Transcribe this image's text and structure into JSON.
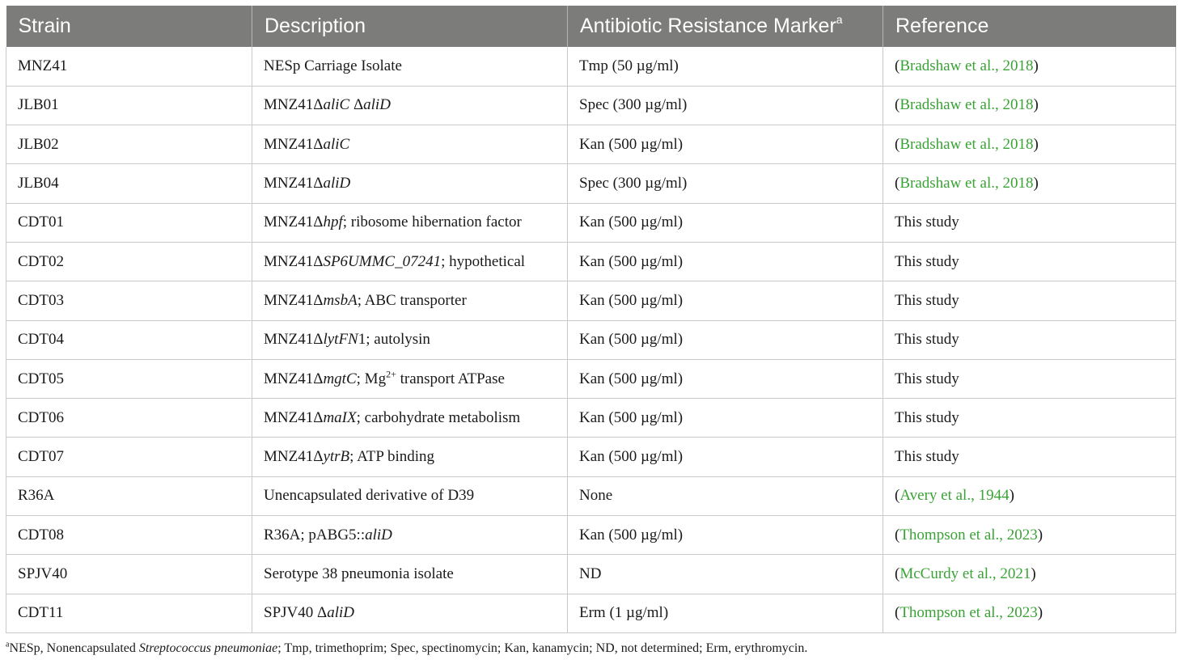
{
  "table": {
    "headers": {
      "strain": "Strain",
      "description": "Description",
      "marker": "Antibiotic Resistance Marker",
      "marker_sup": "a",
      "reference": "Reference"
    },
    "rows": [
      {
        "strain": "MNZ41",
        "desc_pre": "NESp Carriage Isolate",
        "desc_it": "",
        "desc_post": "",
        "desc_sup": "",
        "desc_tail": "",
        "marker": "Tmp (50 µg/ml)",
        "ref_open": "(",
        "ref_link": "Bradshaw et al., 2018",
        "ref_close": ")",
        "ref_plain": ""
      },
      {
        "strain": "JLB01",
        "desc_pre": "MNZ41Δ",
        "desc_it": "aliC",
        "desc_post": " Δ",
        "desc_it2": "aliD",
        "desc_sup": "",
        "desc_tail": "",
        "marker": "Spec (300 µg/ml)",
        "ref_open": "(",
        "ref_link": "Bradshaw et al., 2018",
        "ref_close": ")",
        "ref_plain": ""
      },
      {
        "strain": "JLB02",
        "desc_pre": "MNZ41Δ",
        "desc_it": "aliC",
        "desc_post": "",
        "desc_sup": "",
        "desc_tail": "",
        "marker": "Kan (500 µg/ml)",
        "ref_open": "(",
        "ref_link": "Bradshaw et al., 2018",
        "ref_close": ")",
        "ref_plain": ""
      },
      {
        "strain": "JLB04",
        "desc_pre": "MNZ41Δ",
        "desc_it": "aliD",
        "desc_post": "",
        "desc_sup": "",
        "desc_tail": "",
        "marker": "Spec (300 µg/ml)",
        "ref_open": "(",
        "ref_link": "Bradshaw et al., 2018",
        "ref_close": ")",
        "ref_plain": ""
      },
      {
        "strain": "CDT01",
        "desc_pre": "MNZ41Δ",
        "desc_it": "hpf",
        "desc_post": "; ribosome hibernation factor",
        "desc_sup": "",
        "desc_tail": "",
        "marker": "Kan (500 µg/ml)",
        "ref_open": "",
        "ref_link": "",
        "ref_close": "",
        "ref_plain": "This study"
      },
      {
        "strain": "CDT02",
        "desc_pre": "MNZ41Δ",
        "desc_it": "SP6UMMC_07241",
        "desc_post": "; hypothetical",
        "desc_sup": "",
        "desc_tail": "",
        "marker": "Kan (500 µg/ml)",
        "ref_open": "",
        "ref_link": "",
        "ref_close": "",
        "ref_plain": "This study"
      },
      {
        "strain": "CDT03",
        "desc_pre": "MNZ41Δ",
        "desc_it": "msbA",
        "desc_post": "; ABC transporter",
        "desc_sup": "",
        "desc_tail": "",
        "marker": "Kan (500 µg/ml)",
        "ref_open": "",
        "ref_link": "",
        "ref_close": "",
        "ref_plain": "This study"
      },
      {
        "strain": "CDT04",
        "desc_pre": "MNZ41Δ",
        "desc_it": "lytFN",
        "desc_post": "1; autolysin",
        "desc_sup": "",
        "desc_tail": "",
        "marker": "Kan (500 µg/ml)",
        "ref_open": "",
        "ref_link": "",
        "ref_close": "",
        "ref_plain": "This study"
      },
      {
        "strain": "CDT05",
        "desc_pre": "MNZ41Δ",
        "desc_it": "mgtC",
        "desc_post": "; Mg",
        "desc_sup": "2+",
        "desc_tail": " transport ATPase",
        "marker": "Kan (500 µg/ml)",
        "ref_open": "",
        "ref_link": "",
        "ref_close": "",
        "ref_plain": "This study"
      },
      {
        "strain": "CDT06",
        "desc_pre": "MNZ41Δ",
        "desc_it": "maIX",
        "desc_post": "; carbohydrate metabolism",
        "desc_sup": "",
        "desc_tail": "",
        "marker": "Kan (500 µg/ml)",
        "ref_open": "",
        "ref_link": "",
        "ref_close": "",
        "ref_plain": "This study"
      },
      {
        "strain": "CDT07",
        "desc_pre": "MNZ41Δ",
        "desc_it": "ytrB",
        "desc_post": "; ATP binding",
        "desc_sup": "",
        "desc_tail": "",
        "marker": "Kan (500 µg/ml)",
        "ref_open": "",
        "ref_link": "",
        "ref_close": "",
        "ref_plain": "This study"
      },
      {
        "strain": "R36A",
        "desc_pre": "Unencapsulated derivative of D39",
        "desc_it": "",
        "desc_post": "",
        "desc_sup": "",
        "desc_tail": "",
        "marker": "None",
        "ref_open": "(",
        "ref_link": "Avery et al., 1944",
        "ref_close": ")",
        "ref_plain": ""
      },
      {
        "strain": "CDT08",
        "desc_pre": "R36A; pABG5::",
        "desc_it": "aliD",
        "desc_post": "",
        "desc_sup": "",
        "desc_tail": "",
        "marker": "Kan (500 µg/ml)",
        "ref_open": "(",
        "ref_link": "Thompson et al., 2023",
        "ref_close": ")",
        "ref_plain": ""
      },
      {
        "strain": "SPJV40",
        "desc_pre": "Serotype 38 pneumonia isolate",
        "desc_it": "",
        "desc_post": "",
        "desc_sup": "",
        "desc_tail": "",
        "marker": "ND",
        "ref_open": "(",
        "ref_link": "McCurdy et al., 2021",
        "ref_close": ")",
        "ref_plain": ""
      },
      {
        "strain": "CDT11",
        "desc_pre": "SPJV40 Δ",
        "desc_it": "aliD",
        "desc_post": "",
        "desc_sup": "",
        "desc_tail": "",
        "marker": "Erm (1 µg/ml)",
        "ref_open": "(",
        "ref_link": "Thompson et al., 2023",
        "ref_close": ")",
        "ref_plain": ""
      }
    ]
  },
  "footnote": {
    "sup": "a",
    "pre": "NESp, Nonencapsulated ",
    "italic": "Streptococcus pneumoniae",
    "post": "; Tmp, trimethoprim; Spec, spectinomycin; Kan, kanamycin; ND, not determined; Erm, erythromycin."
  },
  "colors": {
    "header_bg": "#7c7c7b",
    "link": "#3aa335"
  }
}
